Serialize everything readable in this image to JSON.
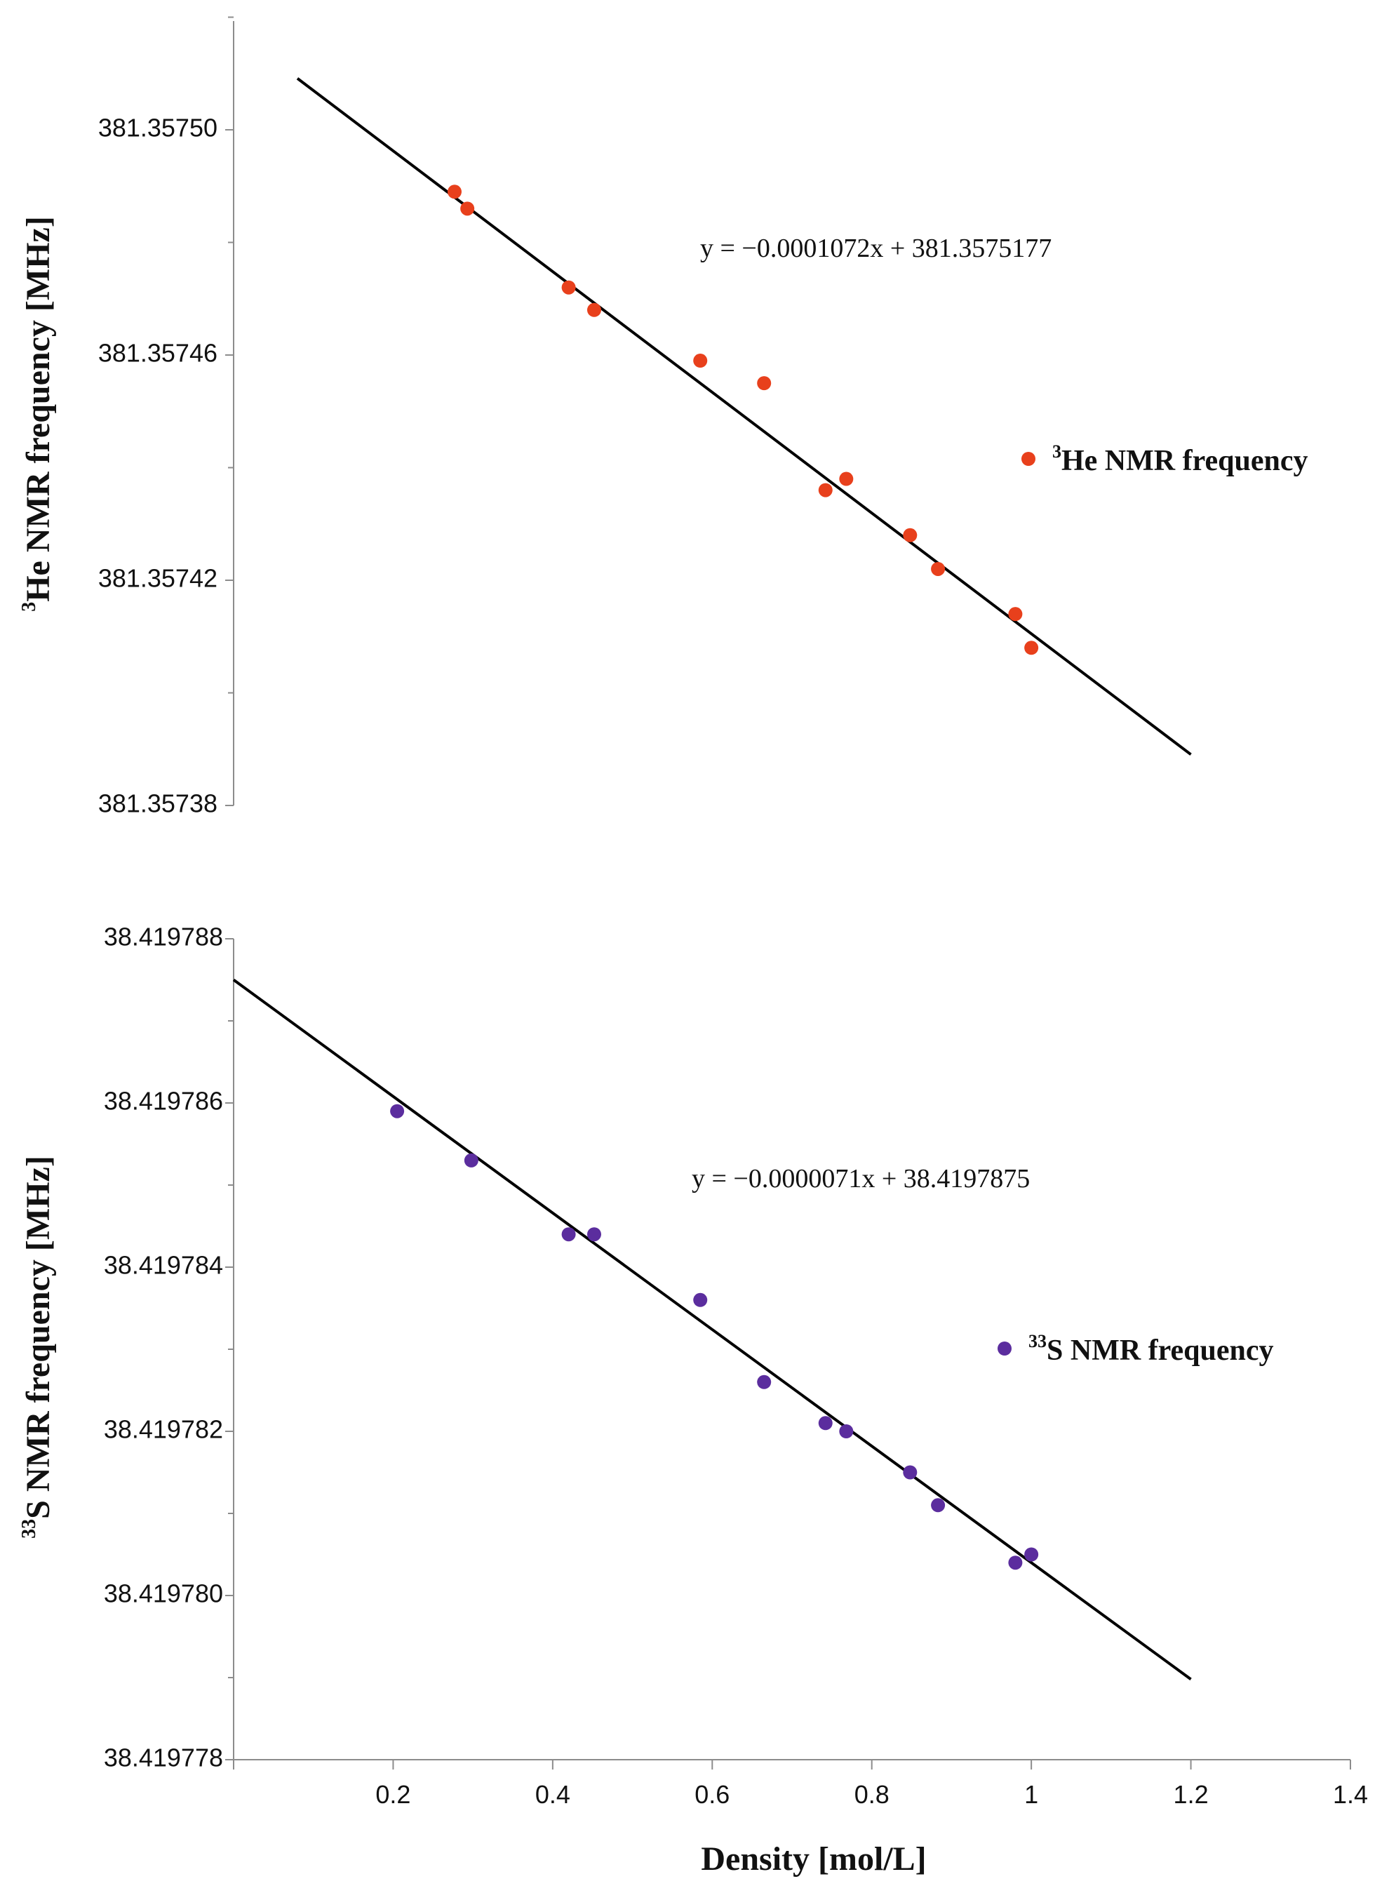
{
  "chart_data": [
    {
      "type": "scatter",
      "id": "he",
      "title": "",
      "ylabel": {
        "sup": "3",
        "text": "He NMR frequency [MHz]"
      },
      "xlabel": "",
      "xlim": [
        0,
        1.4
      ],
      "ylim": [
        381.35738,
        381.35752
      ],
      "y_ticks": [
        "381.35738",
        "381.35742",
        "381.35746",
        "381.35750"
      ],
      "marker_color": "#e8401c",
      "series": [
        {
          "name": "He NMR  frequency",
          "legend": {
            "sup": "3",
            "text": "He NMR  frequency"
          },
          "points": [
            [
              0.277,
              381.357489
            ],
            [
              0.293,
              381.357486
            ],
            [
              0.42,
              381.357472
            ],
            [
              0.452,
              381.357468
            ],
            [
              0.585,
              381.357459
            ],
            [
              0.665,
              381.357455
            ],
            [
              0.742,
              381.357436
            ],
            [
              0.768,
              381.357438
            ],
            [
              0.848,
              381.357428
            ],
            [
              0.883,
              381.357422
            ],
            [
              0.98,
              381.357414
            ],
            [
              1.0,
              381.357408
            ]
          ]
        }
      ],
      "trendline": {
        "slope": -0.0001072,
        "intercept": 381.3575177,
        "x_range": [
          0.08,
          1.2
        ],
        "equation": "y = −0.0001072x + 381.3575177"
      }
    },
    {
      "type": "scatter",
      "id": "s",
      "title": "",
      "ylabel": {
        "sup": "33",
        "text": "S NMR frequency [MHz]"
      },
      "xlabel": "Density [mol/L]",
      "xlim": [
        0,
        1.4
      ],
      "ylim": [
        38.419778,
        38.419788
      ],
      "x_ticks": [
        "0.2",
        "0.4",
        "0.6",
        "0.8",
        "1",
        "1.2",
        "1.4"
      ],
      "y_ticks": [
        "38.419778",
        "38.419780",
        "38.419782",
        "38.419784",
        "38.419786",
        "38.419788"
      ],
      "marker_color": "#5b2d9e",
      "series": [
        {
          "name": "S NMR frequency",
          "legend": {
            "sup": "33",
            "text": "S NMR frequency"
          },
          "points": [
            [
              0.205,
              38.4197859
            ],
            [
              0.298,
              38.4197853
            ],
            [
              0.42,
              38.4197844
            ],
            [
              0.452,
              38.4197844
            ],
            [
              0.585,
              38.4197836
            ],
            [
              0.665,
              38.4197826
            ],
            [
              0.742,
              38.4197821
            ],
            [
              0.768,
              38.419782
            ],
            [
              0.848,
              38.4197815
            ],
            [
              0.883,
              38.4197811
            ],
            [
              0.98,
              38.4197804
            ],
            [
              1.0,
              38.4197805
            ]
          ]
        }
      ],
      "trendline": {
        "slope": -7.1e-06,
        "intercept": 38.4197875,
        "x_range": [
          0.0,
          1.2
        ],
        "equation": "y = −0.0000071x + 38.4197875"
      }
    }
  ]
}
